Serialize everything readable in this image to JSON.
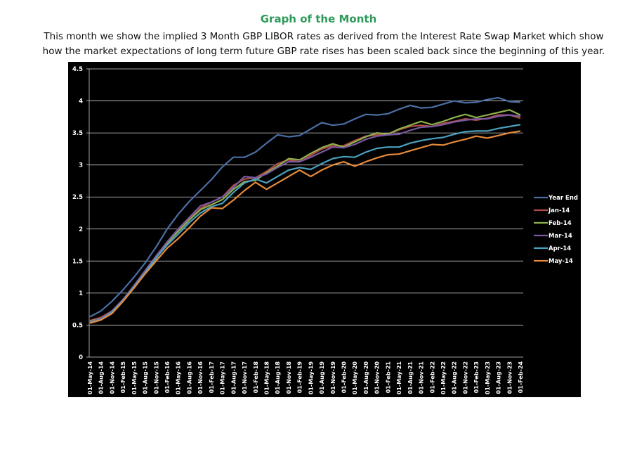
{
  "chart_data": {
    "type": "line",
    "title": "Graph of the Month",
    "subtitle": "This month we show the implied 3 Month GBP LIBOR rates as derived from the Interest Rate Swap Market which show how the market expectations of long term future GBP rate rises has been scaled back since the beginning of this year.",
    "categories": [
      "01-May-14",
      "01-Aug-14",
      "01-Nov-14",
      "01-Feb-15",
      "01-May-15",
      "01-Aug-15",
      "01-Nov-15",
      "01-Feb-16",
      "01-May-16",
      "01-Aug-16",
      "01-Nov-16",
      "01-Feb-17",
      "01-May-17",
      "01-Aug-17",
      "01-Nov-17",
      "01-Feb-18",
      "01-May-18",
      "01-Aug-18",
      "01-Nov-18",
      "01-Feb-19",
      "01-May-19",
      "01-Aug-19",
      "01-Nov-19",
      "01-Feb-20",
      "01-May-20",
      "01-Aug-20",
      "01-Nov-20",
      "01-Feb-21",
      "01-May-21",
      "01-Aug-21",
      "01-Nov-21",
      "01-Feb-22",
      "01-May-22",
      "01-Aug-22",
      "01-Nov-22",
      "01-Feb-23",
      "01-May-23",
      "01-Aug-23",
      "01-Nov-23",
      "01-Feb-24"
    ],
    "series": [
      {
        "name": "Year End",
        "color": "#4a6fa5",
        "values": [
          0.63,
          0.72,
          0.87,
          1.05,
          1.25,
          1.47,
          1.72,
          2.0,
          2.23,
          2.43,
          2.6,
          2.77,
          2.97,
          3.12,
          3.12,
          3.2,
          3.34,
          3.47,
          3.44,
          3.46,
          3.56,
          3.66,
          3.62,
          3.64,
          3.72,
          3.79,
          3.78,
          3.8,
          3.87,
          3.93,
          3.89,
          3.9,
          3.95,
          4.0,
          3.97,
          3.98,
          4.02,
          4.05,
          3.99,
          3.98
        ]
      },
      {
        "name": "Jan-14",
        "color": "#b04a48",
        "values": [
          0.57,
          0.62,
          0.72,
          0.9,
          1.1,
          1.32,
          1.54,
          1.77,
          1.97,
          2.15,
          2.32,
          2.42,
          2.5,
          2.68,
          2.78,
          2.8,
          2.9,
          3.02,
          3.08,
          3.05,
          3.15,
          3.25,
          3.3,
          3.3,
          3.38,
          3.45,
          3.47,
          3.48,
          3.55,
          3.6,
          3.62,
          3.6,
          3.65,
          3.68,
          3.72,
          3.7,
          3.73,
          3.78,
          3.78,
          3.73
        ]
      },
      {
        "name": "Feb-14",
        "color": "#8db04a",
        "values": [
          0.56,
          0.6,
          0.7,
          0.9,
          1.1,
          1.32,
          1.54,
          1.78,
          1.96,
          2.14,
          2.3,
          2.38,
          2.46,
          2.62,
          2.74,
          2.76,
          2.88,
          2.98,
          3.1,
          3.08,
          3.18,
          3.27,
          3.33,
          3.28,
          3.36,
          3.44,
          3.5,
          3.48,
          3.56,
          3.62,
          3.68,
          3.63,
          3.68,
          3.74,
          3.79,
          3.74,
          3.78,
          3.82,
          3.86,
          3.78
        ]
      },
      {
        "name": "Mar-14",
        "color": "#7a5aa0",
        "values": [
          0.55,
          0.6,
          0.72,
          0.9,
          1.12,
          1.35,
          1.58,
          1.8,
          2.0,
          2.18,
          2.36,
          2.42,
          2.5,
          2.65,
          2.82,
          2.8,
          2.86,
          2.96,
          3.05,
          3.05,
          3.12,
          3.2,
          3.28,
          3.27,
          3.32,
          3.4,
          3.45,
          3.47,
          3.48,
          3.54,
          3.59,
          3.6,
          3.63,
          3.67,
          3.7,
          3.72,
          3.72,
          3.76,
          3.78,
          3.76
        ]
      },
      {
        "name": "Apr-14",
        "color": "#4aa0c0",
        "values": [
          0.54,
          0.59,
          0.7,
          0.88,
          1.1,
          1.32,
          1.55,
          1.75,
          1.92,
          2.1,
          2.25,
          2.35,
          2.4,
          2.57,
          2.72,
          2.78,
          2.72,
          2.82,
          2.92,
          2.96,
          2.93,
          3.02,
          3.1,
          3.13,
          3.12,
          3.2,
          3.26,
          3.28,
          3.28,
          3.34,
          3.38,
          3.41,
          3.43,
          3.48,
          3.52,
          3.53,
          3.53,
          3.57,
          3.6,
          3.63
        ]
      },
      {
        "name": "May-14",
        "color": "#e58a3a",
        "values": [
          0.53,
          0.58,
          0.68,
          0.87,
          1.08,
          1.3,
          1.5,
          1.7,
          1.85,
          2.02,
          2.2,
          2.33,
          2.32,
          2.45,
          2.6,
          2.73,
          2.62,
          2.72,
          2.82,
          2.92,
          2.82,
          2.92,
          3.0,
          3.05,
          2.98,
          3.05,
          3.11,
          3.16,
          3.17,
          3.22,
          3.27,
          3.32,
          3.31,
          3.36,
          3.4,
          3.45,
          3.42,
          3.46,
          3.5,
          3.53
        ]
      }
    ],
    "ylim": [
      0,
      4.5
    ],
    "yticks": [
      0,
      0.5,
      1,
      1.5,
      2,
      2.5,
      3,
      3.5,
      4,
      4.5
    ],
    "grid": true,
    "legend": "right"
  }
}
